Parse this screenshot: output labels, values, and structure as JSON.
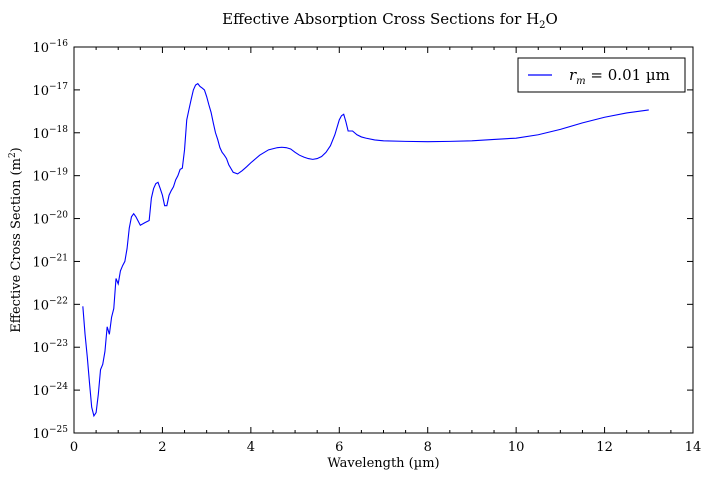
{
  "chart_data": {
    "type": "line",
    "title": "Effective Absorption Cross Sections for H",
    "title_subscript": "2",
    "title_suffix": "O",
    "xlabel": "Wavelength (µm)",
    "ylabel": "Effective Cross Section (m",
    "ylabel_superscript": "2",
    "ylabel_suffix": ")",
    "xlim": [
      0,
      14
    ],
    "ylim": [
      1e-25,
      1e-16
    ],
    "yscale": "log",
    "grid": false,
    "legend_position": "top-right",
    "x_ticks": [
      {
        "value": 0,
        "label": "0"
      },
      {
        "value": 2,
        "label": "2"
      },
      {
        "value": 4,
        "label": "4"
      },
      {
        "value": 6,
        "label": "6"
      },
      {
        "value": 8,
        "label": "8"
      },
      {
        "value": 10,
        "label": "10"
      },
      {
        "value": 12,
        "label": "12"
      },
      {
        "value": 14,
        "label": "14"
      }
    ],
    "y_ticks": [
      {
        "exp": -25,
        "base": "10",
        "power": "−25"
      },
      {
        "exp": -24,
        "base": "10",
        "power": "−24"
      },
      {
        "exp": -23,
        "base": "10",
        "power": "−23"
      },
      {
        "exp": -22,
        "base": "10",
        "power": "−22"
      },
      {
        "exp": -21,
        "base": "10",
        "power": "−21"
      },
      {
        "exp": -20,
        "base": "10",
        "power": "−20"
      },
      {
        "exp": -19,
        "base": "10",
        "power": "−19"
      },
      {
        "exp": -18,
        "base": "10",
        "power": "−18"
      },
      {
        "exp": -17,
        "base": "10",
        "power": "−17"
      },
      {
        "exp": -16,
        "base": "10",
        "power": "−16"
      }
    ],
    "series": [
      {
        "name_var": "r",
        "name_sub": "m",
        "name_value": " = 0.01 µm",
        "color": "#0000ff",
        "x": [
          0.2,
          0.25,
          0.3,
          0.35,
          0.4,
          0.45,
          0.5,
          0.55,
          0.6,
          0.65,
          0.7,
          0.75,
          0.8,
          0.85,
          0.9,
          0.95,
          1.0,
          1.05,
          1.1,
          1.15,
          1.2,
          1.25,
          1.3,
          1.35,
          1.4,
          1.5,
          1.6,
          1.7,
          1.75,
          1.8,
          1.85,
          1.9,
          1.95,
          2.0,
          2.05,
          2.1,
          2.15,
          2.2,
          2.25,
          2.3,
          2.35,
          2.4,
          2.45,
          2.5,
          2.55,
          2.6,
          2.65,
          2.7,
          2.75,
          2.8,
          2.85,
          2.9,
          2.95,
          3.0,
          3.05,
          3.1,
          3.15,
          3.2,
          3.25,
          3.3,
          3.35,
          3.4,
          3.45,
          3.5,
          3.6,
          3.7,
          3.8,
          3.9,
          4.0,
          4.2,
          4.4,
          4.6,
          4.7,
          4.8,
          4.9,
          5.0,
          5.1,
          5.2,
          5.3,
          5.4,
          5.5,
          5.6,
          5.7,
          5.8,
          5.9,
          6.0,
          6.05,
          6.1,
          6.15,
          6.2,
          6.3,
          6.4,
          6.5,
          6.6,
          6.8,
          7.0,
          7.5,
          8.0,
          8.5,
          9.0,
          9.5,
          10.0,
          10.5,
          11.0,
          11.5,
          12.0,
          12.5,
          13.0
        ],
        "y": [
          9e-23,
          2e-23,
          6e-24,
          1.5e-24,
          4e-25,
          2.5e-25,
          3e-25,
          8e-25,
          3e-24,
          4e-24,
          8e-24,
          3e-23,
          2e-23,
          5e-23,
          8e-23,
          4e-22,
          3e-22,
          6e-22,
          8e-22,
          1e-21,
          2e-21,
          6e-21,
          1.1e-20,
          1.3e-20,
          1.1e-20,
          7e-21,
          8e-21,
          9e-21,
          3e-20,
          5e-20,
          6.5e-20,
          7e-20,
          5e-20,
          3.5e-20,
          2e-20,
          2e-20,
          3.5e-20,
          4.5e-20,
          5.5e-20,
          8e-20,
          1e-19,
          1.4e-19,
          1.5e-19,
          4e-19,
          2e-18,
          3.5e-18,
          6e-18,
          1e-17,
          1.3e-17,
          1.4e-17,
          1.2e-17,
          1.1e-17,
          1e-17,
          7e-18,
          4.5e-18,
          3e-18,
          1.7e-18,
          1e-18,
          7e-19,
          4.5e-19,
          3.5e-19,
          3e-19,
          2.5e-19,
          1.8e-19,
          1.2e-19,
          1.1e-19,
          1.3e-19,
          1.6e-19,
          2e-19,
          3e-19,
          4e-19,
          4.5e-19,
          4.6e-19,
          4.5e-19,
          4.2e-19,
          3.5e-19,
          3e-19,
          2.7e-19,
          2.5e-19,
          2.4e-19,
          2.5e-19,
          2.8e-19,
          3.5e-19,
          5e-19,
          9e-19,
          2e-18,
          2.5e-18,
          2.7e-18,
          1.8e-18,
          1.1e-18,
          1.1e-18,
          9e-19,
          8e-19,
          7.5e-19,
          6.8e-19,
          6.5e-19,
          6.3e-19,
          6.2e-19,
          6.3e-19,
          6.5e-19,
          7e-19,
          7.5e-19,
          9e-19,
          1.2e-18,
          1.7e-18,
          2.3e-18,
          2.9e-18,
          3.4e-18
        ]
      }
    ]
  }
}
